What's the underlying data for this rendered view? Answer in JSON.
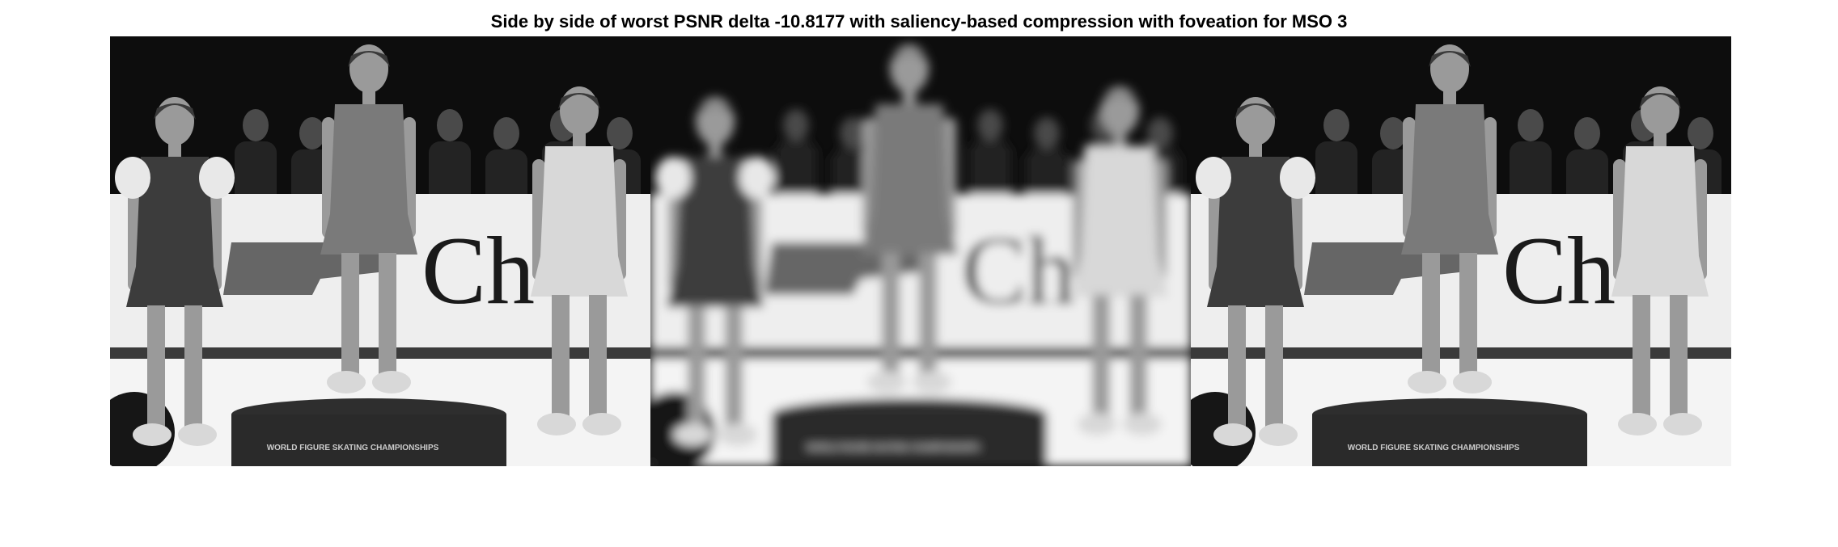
{
  "figure": {
    "title": "Side by side of worst PSNR delta -10.8177 with saliency-based compression with foveation for MSO 3"
  },
  "panels": [
    {
      "id": "original",
      "blur": 0
    },
    {
      "id": "foveated",
      "blur": 6
    },
    {
      "id": "reference",
      "blur": 0
    }
  ],
  "scene": {
    "banner_text": "Ch",
    "podium_text": "WORLD FIGURE SKATING CHAMPIONSHIPS",
    "palette": {
      "background": "#0d0d0d",
      "banner": "#eeeeee",
      "ice": "#f4f4f4",
      "dark": "#2a2a2a",
      "mid": "#7a7a7a",
      "skin": "#9a9a9a",
      "light": "#d8d8d8"
    }
  }
}
